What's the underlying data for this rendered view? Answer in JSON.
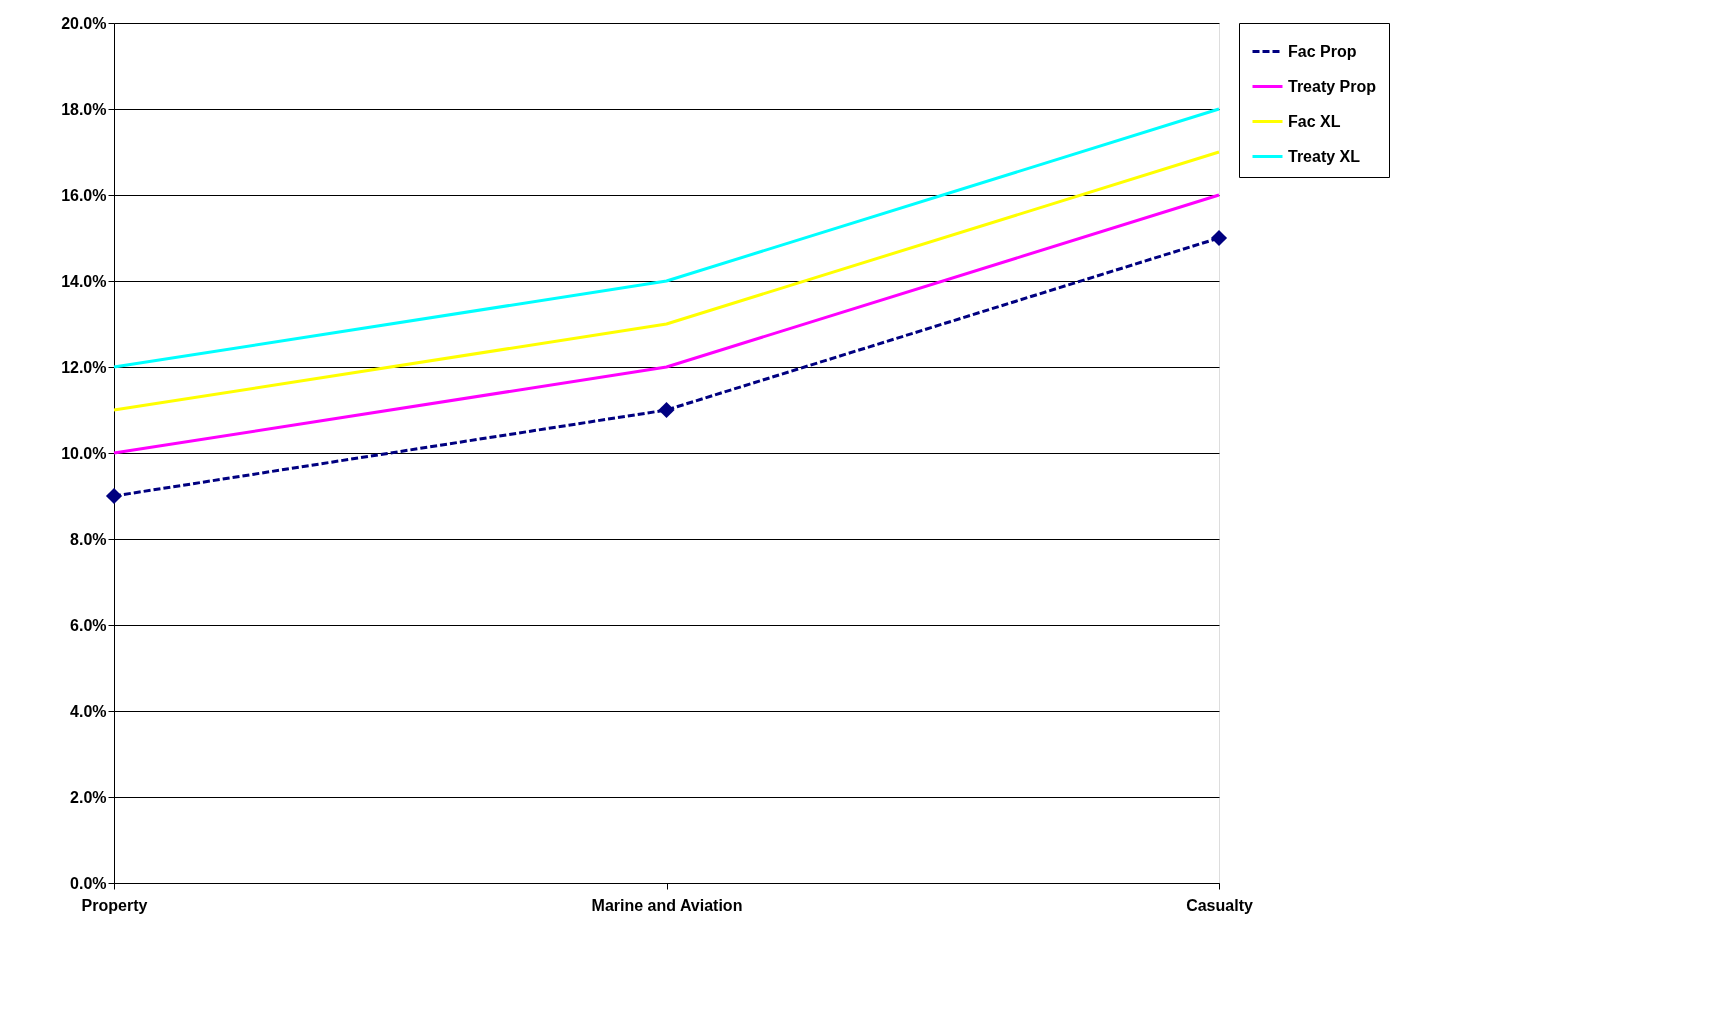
{
  "chart_data": {
    "type": "line",
    "categories": [
      "Property",
      "Marine and Aviation",
      "Casualty"
    ],
    "series": [
      {
        "name": "Fac Prop",
        "color": "#000080",
        "values": [
          9.0,
          11.0,
          15.0
        ],
        "line_style": "dashed",
        "marker": "diamond"
      },
      {
        "name": "Treaty Prop",
        "color": "#ff00ff",
        "values": [
          10.0,
          12.0,
          16.0
        ],
        "line_style": "solid",
        "marker": "none"
      },
      {
        "name": "Fac XL",
        "color": "#ffff00",
        "values": [
          11.0,
          13.0,
          17.0
        ],
        "line_style": "solid",
        "marker": "none"
      },
      {
        "name": "Treaty XL",
        "color": "#00ffff",
        "values": [
          12.0,
          14.0,
          18.0
        ],
        "line_style": "solid",
        "marker": "none"
      }
    ],
    "ylim": [
      0,
      20
    ],
    "yticks": [
      {
        "value": 0,
        "label": "0.0%"
      },
      {
        "value": 2,
        "label": "2.0%"
      },
      {
        "value": 4,
        "label": "4.0%"
      },
      {
        "value": 6,
        "label": "6.0%"
      },
      {
        "value": 8,
        "label": "8.0%"
      },
      {
        "value": 10,
        "label": "10.0%"
      },
      {
        "value": 12,
        "label": "12.0%"
      },
      {
        "value": 14,
        "label": "14.0%"
      },
      {
        "value": 16,
        "label": "16.0%"
      },
      {
        "value": 18,
        "label": "18.0%"
      },
      {
        "value": 20,
        "label": "20.0%"
      }
    ],
    "grid": "y",
    "legend": "right"
  }
}
